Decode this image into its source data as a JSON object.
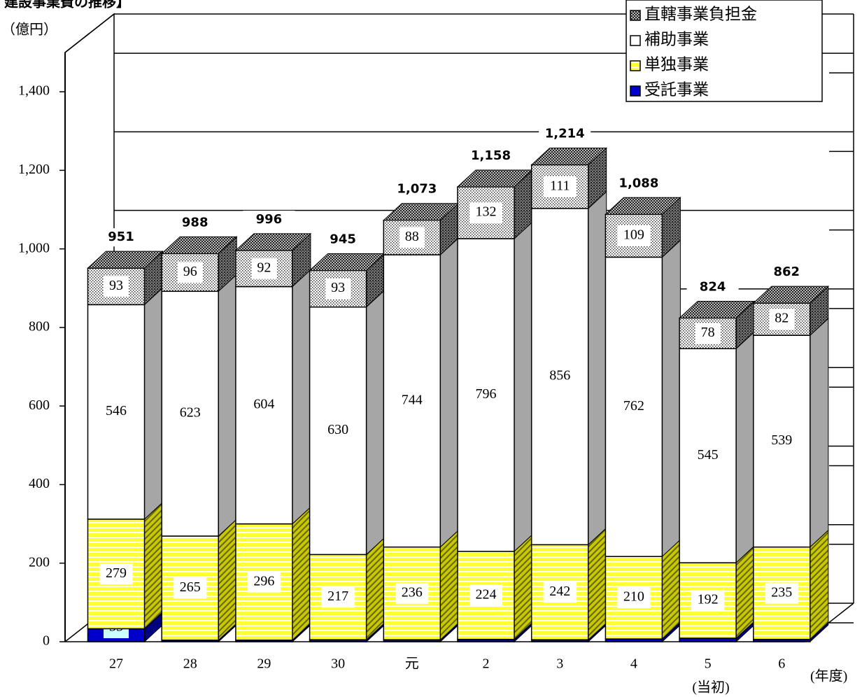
{
  "chart_data": {
    "type": "bar3d_stacked",
    "title": "建設事業費の推移】",
    "y_axis_label": "（億円）",
    "x_axis_label": "(年度)",
    "x_annotation": "(当初)",
    "categories": [
      "27",
      "28",
      "29",
      "30",
      "元",
      "2",
      "3",
      "4",
      "5",
      "6"
    ],
    "series": [
      {
        "name": "受託事業",
        "color": "#0000cc",
        "values": [
          33,
          4,
          4,
          5,
          5,
          6,
          5,
          7,
          9,
          6
        ]
      },
      {
        "name": "単独事業",
        "color": "#ffff33",
        "values": [
          279,
          265,
          296,
          217,
          236,
          224,
          242,
          210,
          192,
          235
        ]
      },
      {
        "name": "補助事業",
        "color": "#ffffff",
        "values": [
          546,
          623,
          604,
          630,
          744,
          796,
          856,
          762,
          545,
          539
        ]
      },
      {
        "name": "直轄事業負担金",
        "color": "#888888",
        "values": [
          93,
          96,
          92,
          93,
          88,
          132,
          111,
          109,
          78,
          82
        ]
      }
    ],
    "totals": [
      951,
      988,
      996,
      945,
      1073,
      1158,
      1214,
      1088,
      824,
      862
    ],
    "total_labels": [
      "951",
      "988",
      "996",
      "945",
      "1,073",
      "1,158",
      "1,214",
      "1,088",
      "824",
      "862"
    ],
    "ylim": [
      0,
      1500
    ],
    "yticks": [
      0,
      200,
      400,
      600,
      800,
      {
        "value": 1000,
        "label": "1,000"
      },
      {
        "value": 1200,
        "label": "1,200"
      },
      {
        "value": 1400,
        "label": "1,400"
      }
    ],
    "grid": true,
    "legend": "top-right"
  }
}
